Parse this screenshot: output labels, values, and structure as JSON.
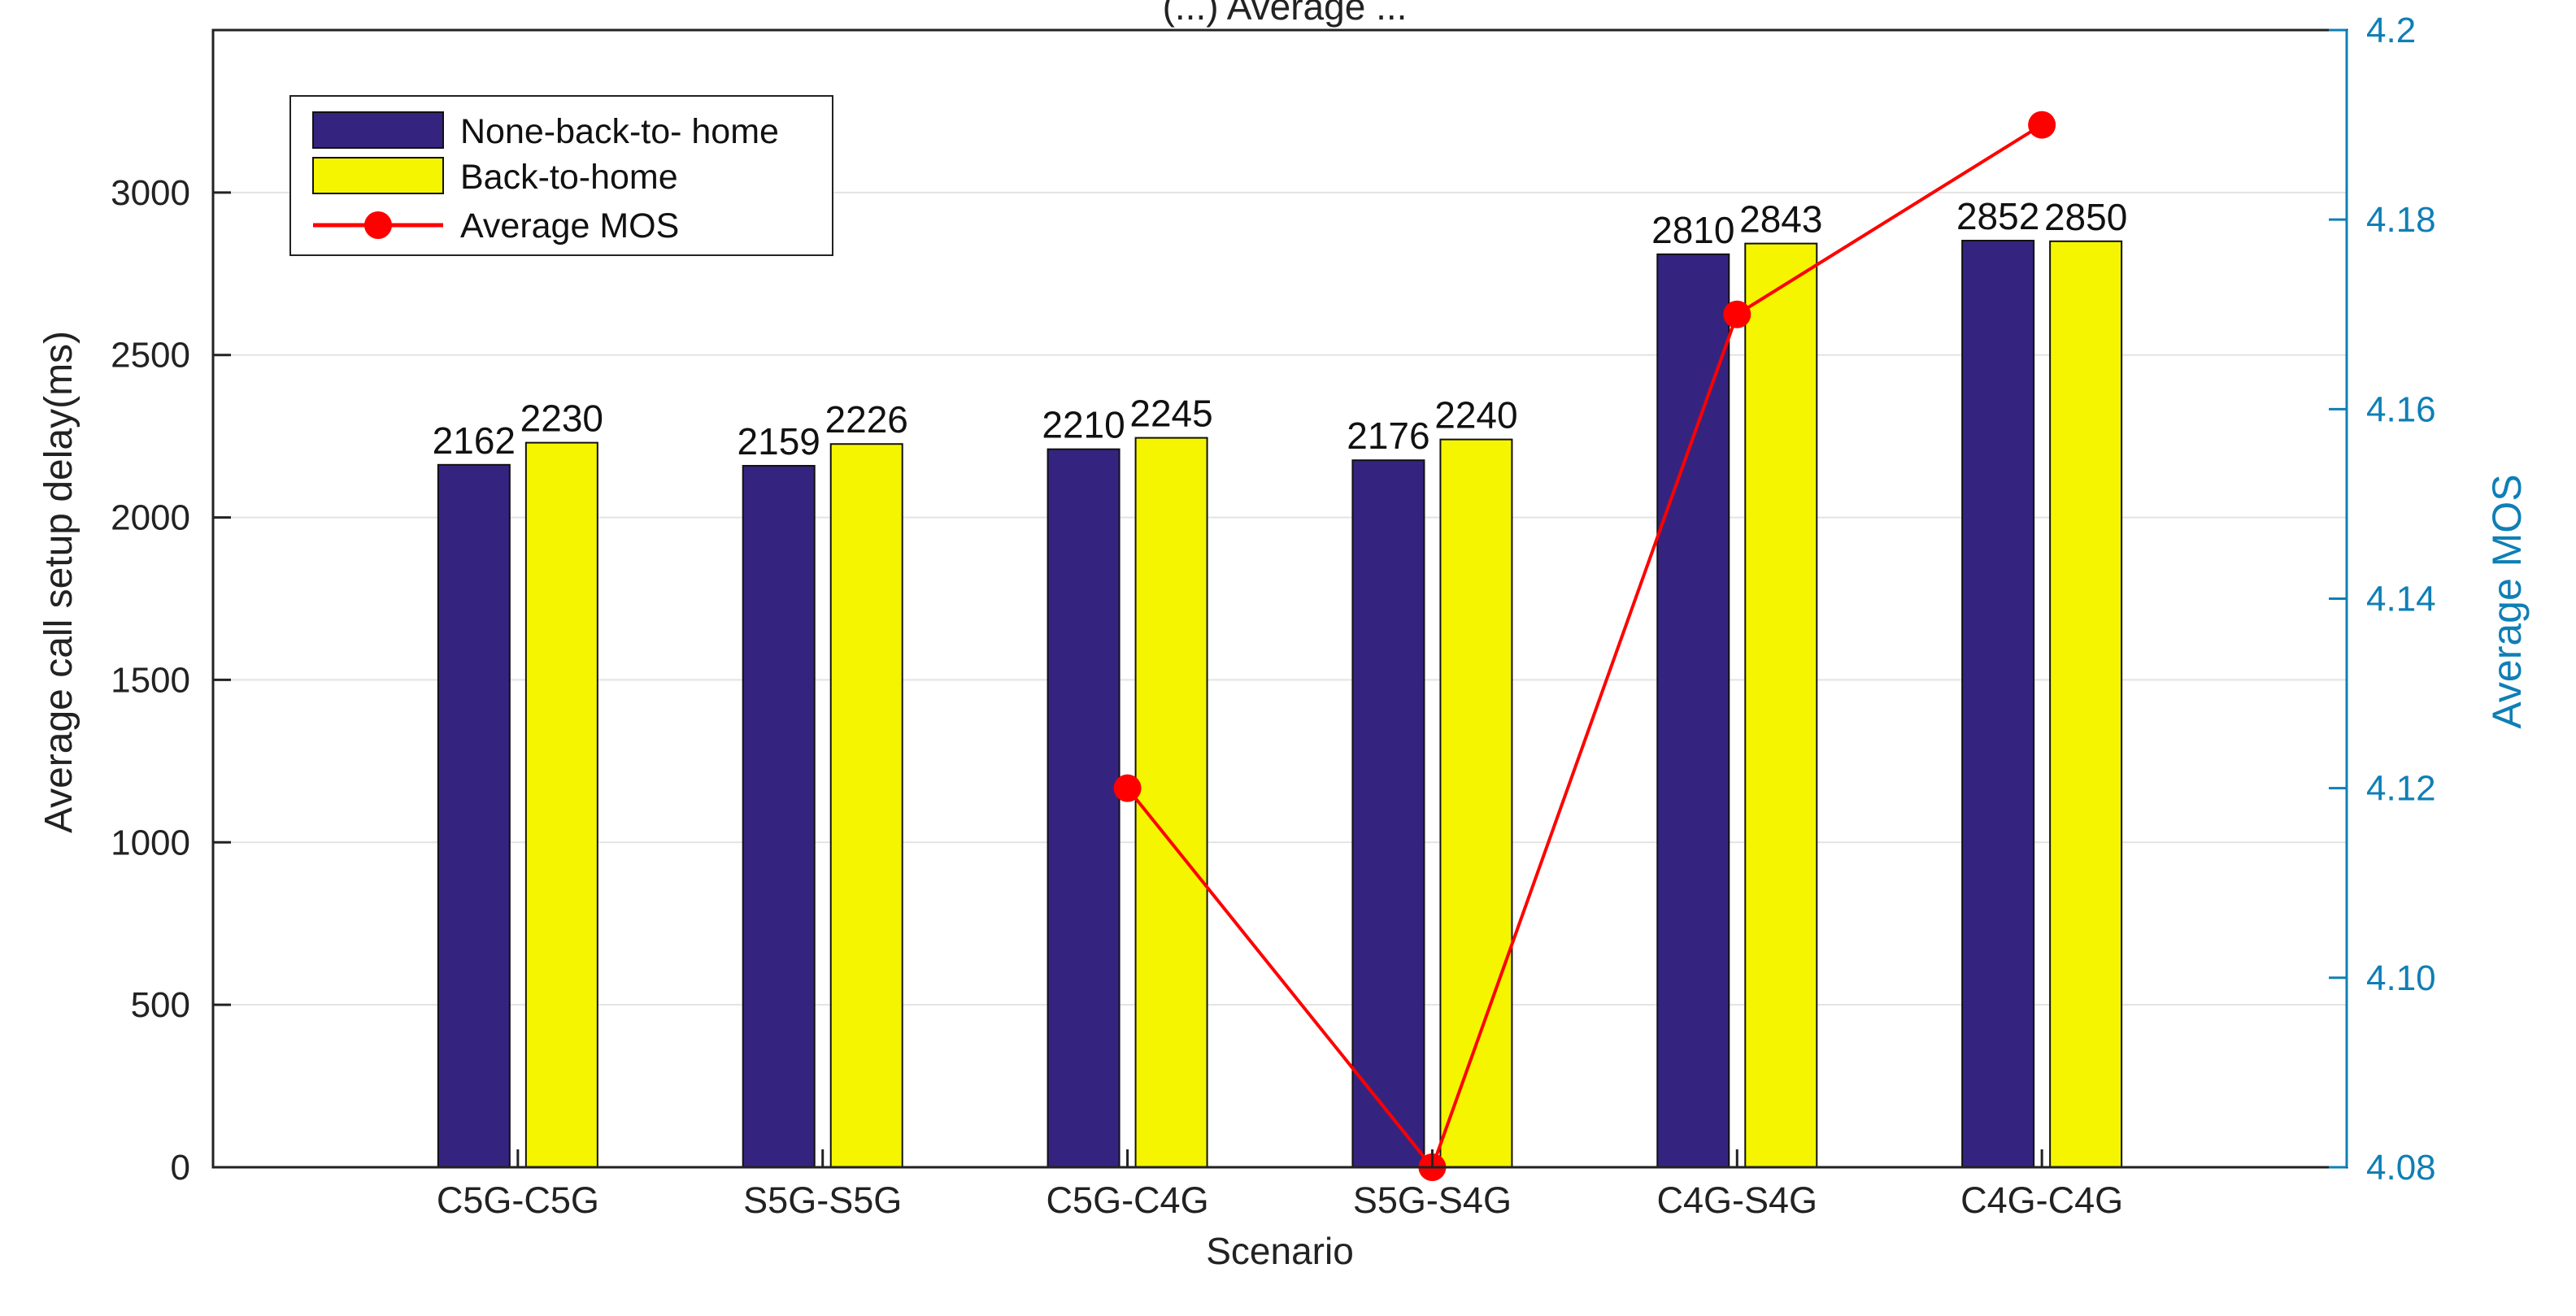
{
  "chart_data": {
    "type": "bar",
    "title": "(...) Average ...",
    "xlabel": "Scenario",
    "ylabel": "Average call setup delay(ms)",
    "y2label": "Average MOS",
    "categories": [
      "C5G-C5G",
      "S5G-S5G",
      "C5G-C4G",
      "S5G-S4G",
      "C4G-S4G",
      "C4G-C4G"
    ],
    "ylim": [
      0,
      3500
    ],
    "yticks": [
      0,
      500,
      1000,
      1500,
      2000,
      2500,
      3000
    ],
    "y2lim": [
      4.08,
      4.2
    ],
    "y2ticks": [
      4.08,
      4.1,
      4.12,
      4.14,
      4.16,
      4.18,
      4.2
    ],
    "grid": true,
    "legend_position": "top-left",
    "series": [
      {
        "name": "None-back-to- home",
        "type": "bar",
        "axis": "left",
        "color": "#35247f",
        "values": [
          2162,
          2159,
          2210,
          2176,
          2810,
          2852
        ]
      },
      {
        "name": "Back-to-home",
        "type": "bar",
        "axis": "left",
        "color": "#f5f500",
        "values": [
          2230,
          2226,
          2245,
          2240,
          2843,
          2850
        ]
      },
      {
        "name": "Average MOS",
        "type": "line",
        "axis": "right",
        "color": "#ff0000",
        "values": [
          null,
          null,
          4.12,
          4.08,
          4.17,
          4.19
        ]
      }
    ],
    "right_axis_color": "#0f7fb5"
  }
}
